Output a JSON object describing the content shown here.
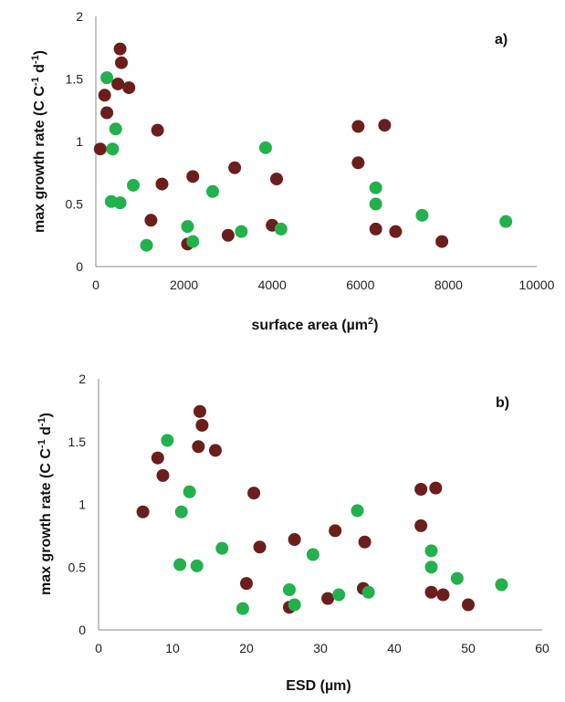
{
  "colors": {
    "series1": "#6B1F1C",
    "series2": "#22B14C"
  },
  "chart_data": [
    {
      "type": "scatter",
      "panel_label": "a)",
      "xlabel": "surface area (µm",
      "xlabel_sup": "2",
      "xlabel_end": ")",
      "ylabel": "max growth rate (C C",
      "ylabel_sup1": "-1",
      "ylabel_mid": " d",
      "ylabel_sup2": "-1",
      "ylabel_end": ")",
      "xlim": [
        0,
        10000
      ],
      "ylim": [
        0,
        2
      ],
      "xticks": [
        0,
        2000,
        4000,
        6000,
        8000,
        10000
      ],
      "xtick_labels": [
        "0",
        "2000",
        "4000",
        "6000",
        "8000",
        "10000"
      ],
      "yticks": [
        0,
        0.5,
        1,
        1.5,
        2
      ],
      "ytick_labels": [
        "0",
        "0.5",
        "1",
        "1.5",
        "2"
      ],
      "grid": false,
      "series": [
        {
          "color": "#6B1F1C",
          "x": [
            100,
            200,
            250,
            500,
            550,
            580,
            750,
            1250,
            1400,
            1500,
            2080,
            2200,
            3000,
            3150,
            4000,
            4100,
            5950,
            5950,
            6350,
            6550,
            6800,
            7850
          ],
          "y": [
            0.94,
            1.37,
            1.23,
            1.46,
            1.74,
            1.63,
            1.43,
            0.37,
            1.09,
            0.66,
            0.18,
            0.72,
            0.25,
            0.79,
            0.33,
            0.7,
            1.12,
            0.83,
            0.3,
            1.13,
            0.28,
            0.2
          ]
        },
        {
          "color": "#22B14C",
          "x": [
            250,
            350,
            380,
            450,
            550,
            850,
            1150,
            2080,
            2200,
            2650,
            3300,
            3850,
            4200,
            6350,
            6350,
            7400,
            9300
          ],
          "y": [
            1.51,
            0.52,
            0.94,
            1.1,
            0.51,
            0.65,
            0.17,
            0.32,
            0.2,
            0.6,
            0.28,
            0.95,
            0.3,
            0.63,
            0.5,
            0.41,
            0.36
          ]
        }
      ]
    },
    {
      "type": "scatter",
      "panel_label": "b)",
      "xlabel": "ESD (µm)",
      "ylabel": "max growth rate (C C",
      "ylabel_sup1": "-1",
      "ylabel_mid": " d",
      "ylabel_sup2": "-1",
      "ylabel_end": ")",
      "xlim": [
        0,
        60
      ],
      "ylim": [
        0,
        2
      ],
      "xticks": [
        0,
        10,
        20,
        30,
        40,
        50,
        60
      ],
      "xtick_labels": [
        "0",
        "10",
        "20",
        "30",
        "40",
        "50",
        "60"
      ],
      "yticks": [
        0,
        0.5,
        1,
        1.5,
        2
      ],
      "ytick_labels": [
        "0",
        "0.5",
        "1",
        "1.5",
        "2"
      ],
      "grid": false,
      "series": [
        {
          "color": "#6B1F1C",
          "x": [
            6.0,
            8.0,
            8.7,
            13.5,
            13.7,
            14.0,
            15.8,
            20.0,
            21.0,
            21.8,
            25.8,
            26.5,
            31.0,
            32.0,
            35.8,
            36.0,
            43.6,
            43.6,
            45.0,
            45.6,
            46.6,
            50.0
          ],
          "y": [
            0.94,
            1.37,
            1.23,
            1.46,
            1.74,
            1.63,
            1.43,
            0.37,
            1.09,
            0.66,
            0.18,
            0.72,
            0.25,
            0.79,
            0.33,
            0.7,
            1.12,
            0.83,
            0.3,
            1.13,
            0.28,
            0.2
          ]
        },
        {
          "color": "#22B14C",
          "x": [
            9.3,
            11.0,
            11.2,
            12.3,
            13.3,
            16.7,
            19.5,
            25.8,
            26.5,
            29.0,
            32.5,
            35.0,
            36.5,
            45.0,
            45.0,
            48.5,
            54.5
          ],
          "y": [
            1.51,
            0.52,
            0.94,
            1.1,
            0.51,
            0.65,
            0.17,
            0.32,
            0.2,
            0.6,
            0.28,
            0.95,
            0.3,
            0.63,
            0.5,
            0.41,
            0.36
          ]
        }
      ]
    }
  ]
}
